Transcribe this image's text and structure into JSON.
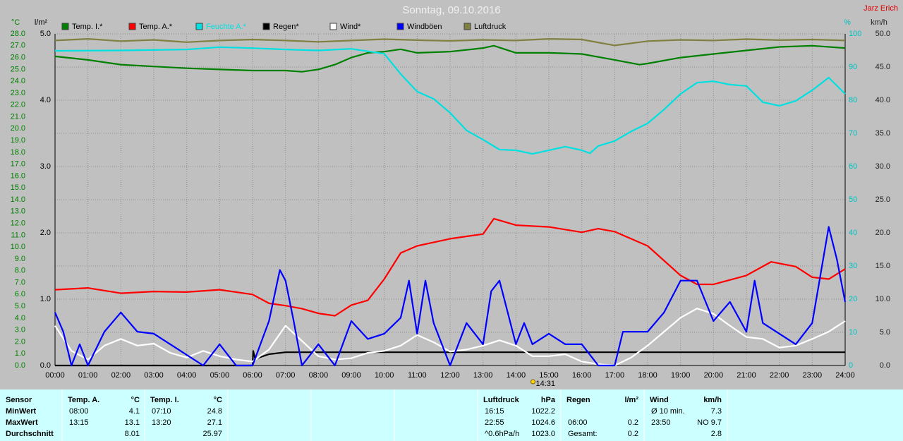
{
  "chart_data": {
    "type": "line",
    "title": "Sonntag, 09.10.2016",
    "credit": "Jarz Erich",
    "grid": true,
    "xlim": [
      0,
      24
    ],
    "xticks": [
      {
        "value": 0,
        "label": "00:00"
      },
      {
        "value": 1,
        "label": "01:00"
      },
      {
        "value": 2,
        "label": "02:00"
      },
      {
        "value": 3,
        "label": "03:00"
      },
      {
        "value": 4,
        "label": "04:00"
      },
      {
        "value": 5,
        "label": "05:00"
      },
      {
        "value": 6,
        "label": "06:00"
      },
      {
        "value": 7,
        "label": "07:00"
      },
      {
        "value": 8,
        "label": "08:00"
      },
      {
        "value": 9,
        "label": "09:00"
      },
      {
        "value": 10,
        "label": "10:00"
      },
      {
        "value": 11,
        "label": "11:00"
      },
      {
        "value": 12,
        "label": "12:00"
      },
      {
        "value": 13,
        "label": "13:00"
      },
      {
        "value": 14,
        "label": "14:00"
      },
      {
        "value": 15,
        "label": "15:00"
      },
      {
        "value": 16,
        "label": "16:00"
      },
      {
        "value": 17,
        "label": "17:00"
      },
      {
        "value": 18,
        "label": "18:00"
      },
      {
        "value": 19,
        "label": "19:00"
      },
      {
        "value": 20,
        "label": "20:00"
      },
      {
        "value": 21,
        "label": "21:00"
      },
      {
        "value": 22,
        "label": "22:00"
      },
      {
        "value": 23,
        "label": "23:00"
      },
      {
        "value": 24,
        "label": "24:00"
      }
    ],
    "ylabel": "°C",
    "ylim": [
      0,
      28
    ],
    "yticks": [
      {
        "value": 0,
        "label": "0.0"
      },
      {
        "value": 1,
        "label": "1.0"
      },
      {
        "value": 2,
        "label": "2.0"
      },
      {
        "value": 3,
        "label": "3.0"
      },
      {
        "value": 4,
        "label": "4.0"
      },
      {
        "value": 5,
        "label": "5.0"
      },
      {
        "value": 6,
        "label": "6.0"
      },
      {
        "value": 7,
        "label": "7.0"
      },
      {
        "value": 8,
        "label": "8.0"
      },
      {
        "value": 9,
        "label": "9.0"
      },
      {
        "value": 10,
        "label": "10.0"
      },
      {
        "value": 11,
        "label": "11.0"
      },
      {
        "value": 12,
        "label": "12.0"
      },
      {
        "value": 13,
        "label": "13.0"
      },
      {
        "value": 14,
        "label": "14.0"
      },
      {
        "value": 15,
        "label": "15.0"
      },
      {
        "value": 16,
        "label": "16.0"
      },
      {
        "value": 17,
        "label": "17.0"
      },
      {
        "value": 18,
        "label": "18.0"
      },
      {
        "value": 19,
        "label": "19.0"
      },
      {
        "value": 20,
        "label": "20.0"
      },
      {
        "value": 21,
        "label": "21.0"
      },
      {
        "value": 22,
        "label": "22.0"
      },
      {
        "value": 23,
        "label": "23.0"
      },
      {
        "value": 24,
        "label": "24.0"
      },
      {
        "value": 25,
        "label": "25.0"
      },
      {
        "value": 26,
        "label": "26.0"
      },
      {
        "value": 27,
        "label": "27.0"
      },
      {
        "value": 28,
        "label": "28.0"
      }
    ],
    "y2label": "l/m²",
    "y2lim": [
      0,
      5
    ],
    "y2ticks": [
      {
        "value": 0,
        "label": "0.0"
      },
      {
        "value": 1,
        "label": "1.0"
      },
      {
        "value": 2,
        "label": "2.0"
      },
      {
        "value": 3,
        "label": "3.0"
      },
      {
        "value": 4,
        "label": "4.0"
      },
      {
        "value": 5,
        "label": "5.0"
      }
    ],
    "y3label": "%",
    "y3lim": [
      0,
      100
    ],
    "y3ticks": [
      0,
      10,
      20,
      30,
      40,
      50,
      60,
      70,
      80,
      90,
      100
    ],
    "y4label": "km/h",
    "y4lim": [
      0,
      50
    ],
    "y4ticks": [
      {
        "value": 0,
        "label": "0.0"
      },
      {
        "value": 5,
        "label": "5.0"
      },
      {
        "value": 10,
        "label": "10.0"
      },
      {
        "value": 15,
        "label": "15.0"
      },
      {
        "value": 20,
        "label": "20.0"
      },
      {
        "value": 25,
        "label": "25.0"
      },
      {
        "value": 30,
        "label": "30.0"
      },
      {
        "value": 35,
        "label": "35.0"
      },
      {
        "value": 40,
        "label": "40.0"
      },
      {
        "value": 45,
        "label": "45.0"
      },
      {
        "value": 50,
        "label": "50.0"
      }
    ],
    "series": [
      {
        "name": "Temp. I.*",
        "color": "#008000",
        "axis": "y",
        "x": [
          0,
          1,
          2,
          3,
          4,
          5,
          6,
          7,
          7.5,
          8,
          8.5,
          9,
          9.5,
          10,
          10.5,
          11,
          12,
          13,
          13.33,
          14,
          15,
          16,
          17,
          17.75,
          18,
          19,
          20,
          21,
          22,
          23,
          24
        ],
        "values": [
          26.1,
          25.8,
          25.4,
          25.25,
          25.1,
          25.0,
          24.9,
          24.9,
          24.8,
          25.0,
          25.4,
          26.0,
          26.4,
          26.5,
          26.7,
          26.4,
          26.5,
          26.8,
          27.0,
          26.4,
          26.4,
          26.3,
          25.8,
          25.4,
          25.5,
          26.0,
          26.3,
          26.6,
          26.9,
          27.0,
          26.8
        ]
      },
      {
        "name": "Temp. A.*",
        "color": "#ff0000",
        "axis": "y",
        "x": [
          0,
          1,
          2,
          3,
          4,
          5,
          6,
          6.5,
          7,
          7.5,
          8,
          8.5,
          9,
          9.5,
          10,
          10.5,
          11,
          11.5,
          12,
          12.5,
          13,
          13.33,
          14,
          15,
          16,
          16.5,
          17,
          18,
          19,
          19.5,
          20,
          21,
          21.75,
          22.5,
          23,
          23.5,
          24
        ],
        "values": [
          6.4,
          6.55,
          6.1,
          6.25,
          6.2,
          6.4,
          6.0,
          5.25,
          5.05,
          4.8,
          4.4,
          4.2,
          5.1,
          5.5,
          7.3,
          9.5,
          10.1,
          10.4,
          10.7,
          10.9,
          11.1,
          12.4,
          11.85,
          11.7,
          11.25,
          11.55,
          11.3,
          10.1,
          7.6,
          6.85,
          6.85,
          7.6,
          8.75,
          8.35,
          7.45,
          7.3,
          8.15
        ]
      },
      {
        "name": "Feuchte A.*",
        "color": "#00e0e0",
        "axis": "y3",
        "x": [
          0,
          2,
          4,
          5,
          6,
          7,
          8,
          9,
          10,
          10.5,
          11,
          11.5,
          12,
          12.5,
          13,
          13.5,
          14,
          14.5,
          15,
          15.5,
          16,
          16.25,
          16.5,
          17,
          17.5,
          18,
          18.5,
          19,
          19.5,
          20,
          20.5,
          21,
          21.5,
          22,
          22.5,
          23,
          23.5,
          24
        ],
        "values": [
          94.9,
          95,
          95.3,
          96,
          95.7,
          95.3,
          95,
          95.5,
          94,
          87.9,
          82.6,
          80.4,
          76.2,
          70.9,
          68.1,
          65.1,
          64.9,
          63.8,
          64.9,
          66,
          64.9,
          64,
          66.2,
          67.7,
          70.6,
          73,
          77.2,
          81.9,
          85.3,
          85.7,
          84.7,
          84.3,
          79.4,
          78.3,
          79.8,
          83,
          86.8,
          81.9
        ]
      },
      {
        "name": "Regen*",
        "color": "#000000",
        "axis": "y2",
        "x": [
          0,
          6,
          6.02,
          6.08,
          6.5,
          7,
          24
        ],
        "values": [
          0,
          0,
          0.22,
          0.1,
          0.17,
          0.2,
          0.2
        ]
      },
      {
        "name": "Wind*",
        "color": "#ffffff",
        "axis": "y4",
        "x": [
          0,
          0.5,
          1,
          1.5,
          2,
          2.5,
          3,
          3.5,
          4,
          4.5,
          5,
          5.5,
          6,
          6.5,
          7,
          7.5,
          8,
          8.5,
          9,
          9.5,
          10,
          10.5,
          11,
          11.5,
          12,
          12.5,
          13,
          13.5,
          14,
          14.5,
          15,
          15.5,
          16,
          16.5,
          17,
          17.5,
          18,
          18.5,
          19,
          19.5,
          20,
          20.5,
          21,
          21.5,
          22,
          22.5,
          23,
          23.5,
          24
        ],
        "values": [
          6.0,
          2.2,
          0.9,
          3.0,
          4.0,
          3.0,
          3.3,
          1.9,
          1.2,
          2.2,
          1.4,
          0.9,
          0.6,
          2.4,
          6.0,
          3.7,
          1.4,
          0.9,
          1.1,
          1.9,
          2.2,
          3.0,
          4.6,
          3.5,
          2.1,
          2.4,
          3.0,
          3.8,
          3.0,
          1.4,
          1.4,
          1.7,
          0.6,
          0.2,
          0,
          1.2,
          3.0,
          5.1,
          7.2,
          8.6,
          7.8,
          6.0,
          4.3,
          4.0,
          2.7,
          3.0,
          4.0,
          5.1,
          6.7
        ]
      },
      {
        "name": "Windböen",
        "color": "#0000ff",
        "axis": "y4",
        "x": [
          0,
          0.25,
          0.5,
          0.75,
          1,
          1.5,
          2,
          2.5,
          3,
          3.5,
          4,
          4.5,
          5,
          5.5,
          6,
          6.5,
          6.83,
          7,
          7.25,
          7.5,
          8,
          8.5,
          9,
          9.5,
          10,
          10.5,
          10.75,
          11,
          11.25,
          11.5,
          12,
          12.5,
          13,
          13.25,
          13.5,
          13.75,
          14,
          14.25,
          14.5,
          15,
          15.5,
          16,
          16.5,
          17,
          17.25,
          18,
          18.5,
          19,
          19.5,
          20,
          20.5,
          21,
          21.25,
          21.5,
          22,
          22.5,
          23,
          23.5,
          23.75,
          24
        ],
        "values": [
          8.0,
          5.1,
          0,
          3.2,
          0,
          5.1,
          8.0,
          5.1,
          4.8,
          3.2,
          1.6,
          0,
          3.2,
          0,
          0,
          6.7,
          14.4,
          12.8,
          6.7,
          0,
          3.2,
          0,
          6.7,
          4.0,
          4.8,
          7.2,
          12.8,
          4.8,
          12.8,
          6.4,
          0,
          6.4,
          3.2,
          11.2,
          12.8,
          8.0,
          3.2,
          6.4,
          3.2,
          4.8,
          3.2,
          3.2,
          0,
          0,
          5.1,
          5.1,
          8.0,
          12.8,
          12.8,
          6.7,
          9.6,
          5.1,
          12.8,
          6.4,
          4.8,
          3.2,
          6.4,
          20.9,
          16.0,
          9.6
        ]
      },
      {
        "name": "Luftdruck",
        "color": "#808040",
        "axis": "y3",
        "x": [
          0,
          1,
          2,
          3,
          4,
          5,
          6,
          7,
          8,
          9,
          10,
          11,
          12,
          13,
          14,
          15,
          16,
          17,
          18,
          19,
          20,
          21,
          22,
          23,
          24
        ],
        "values": [
          98,
          98.5,
          97.8,
          98.2,
          97.5,
          98,
          98.3,
          98,
          97.6,
          98,
          98.4,
          98.1,
          97.9,
          98.2,
          98,
          98.5,
          98.3,
          96.5,
          97.8,
          98.2,
          98,
          98.4,
          98.1,
          98.3,
          98
        ]
      }
    ],
    "now_marker": {
      "x": 14.517,
      "label": "14:31"
    }
  },
  "stats": {
    "sensor_header": "Sensor",
    "row_labels": [
      "MinWert",
      "MaxWert",
      "Durchschnitt"
    ],
    "columns": [
      {
        "title": "Temp. A.",
        "unit": "°C",
        "rows": [
          [
            "08:00",
            "4.1"
          ],
          [
            "13:15",
            "13.1"
          ],
          [
            null,
            "8.01"
          ]
        ]
      },
      {
        "title": "Temp. I.",
        "unit": "°C",
        "rows": [
          [
            "07:10",
            "24.8"
          ],
          [
            "13:20",
            "27.1"
          ],
          [
            null,
            "25.97"
          ]
        ]
      },
      {
        "title": "Luftdruck",
        "unit": "hPa",
        "rows": [
          [
            "16:15",
            "1022.2"
          ],
          [
            "22:55",
            "1024.6"
          ],
          [
            "^0.6hPa/h",
            "1023.0"
          ]
        ]
      },
      {
        "title": "Regen",
        "unit": "l/m²",
        "rows": [
          [
            null,
            null
          ],
          [
            "06:00",
            "0.2"
          ],
          [
            "Gesamt:",
            "0.2"
          ]
        ]
      },
      {
        "title": "Wind",
        "unit": "km/h",
        "rows": [
          [
            "Ø 10 min.",
            "7.3"
          ],
          [
            "23:50",
            "NO 9.7"
          ],
          [
            null,
            "2.8"
          ]
        ]
      }
    ]
  }
}
